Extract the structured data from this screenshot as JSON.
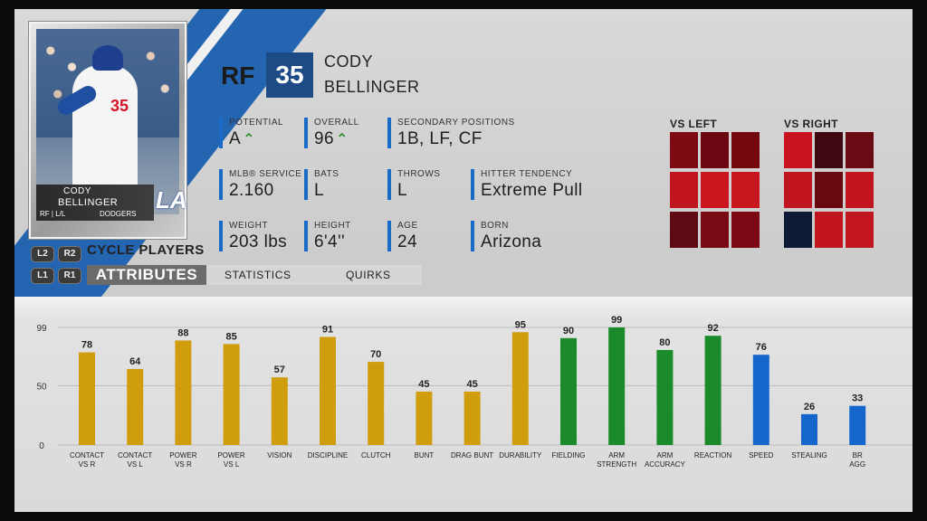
{
  "card": {
    "first_name": "CODY",
    "last_name": "BELLINGER",
    "pos_bats_throws": "RF | L/L",
    "team": "DODGERS",
    "logo": "LA",
    "jersey_number": "35"
  },
  "nav": {
    "l2": "L2",
    "r2": "R2",
    "l1": "L1",
    "r1": "R1",
    "cycle_label": "CYCLE PLAYERS",
    "tabs": [
      {
        "label": "ATTRIBUTES",
        "active": true
      },
      {
        "label": "STATISTICS",
        "active": false
      },
      {
        "label": "QUIRKS",
        "active": false
      }
    ]
  },
  "header": {
    "position": "RF",
    "number": "35",
    "first_name": "CODY",
    "last_name": "BELLINGER"
  },
  "info": {
    "potential": {
      "label": "POTENTIAL",
      "value": "A"
    },
    "overall": {
      "label": "OVERALL",
      "value": "96"
    },
    "secondary": {
      "label": "SECONDARY POSITIONS",
      "value": "1B, LF, CF"
    },
    "service": {
      "label": "MLB® SERVICE",
      "value": "2.160"
    },
    "bats": {
      "label": "BATS",
      "value": "L"
    },
    "throws": {
      "label": "THROWS",
      "value": "L"
    },
    "tendency": {
      "label": "HITTER TENDENCY",
      "value": "Extreme Pull"
    },
    "weight": {
      "label": "WEIGHT",
      "value": "203 lbs"
    },
    "height": {
      "label": "HEIGHT",
      "value": "6'4''"
    },
    "age": {
      "label": "AGE",
      "value": "24"
    },
    "born": {
      "label": "BORN",
      "value": "Arizona"
    }
  },
  "heatmaps": {
    "vs_left": {
      "title": "VS LEFT",
      "cells": [
        "#7e0a14",
        "#6a0710",
        "#74080f",
        "#c0141e",
        "#c9161f",
        "#c8161f",
        "#5e0a12",
        "#7a0a14",
        "#7c0a14"
      ]
    },
    "vs_right": {
      "title": "VS RIGHT",
      "cells": [
        "#c8141e",
        "#3e0810",
        "#6a0a12",
        "#c0141e",
        "#6a0810",
        "#c2141e",
        "#0e1a33",
        "#c0141e",
        "#c2161f"
      ]
    }
  },
  "colors": {
    "hitting": "#cf9d0d",
    "fielding": "#1a8a2a",
    "running": "#1466cc",
    "accent": "#1c4b85"
  },
  "chart_data": {
    "type": "bar",
    "ylim": [
      0,
      99
    ],
    "yticks": [
      0,
      50,
      99
    ],
    "categories": [
      [
        "CONTACT",
        "VS R"
      ],
      [
        "CONTACT",
        "VS L"
      ],
      [
        "POWER",
        "VS R"
      ],
      [
        "POWER",
        "VS L"
      ],
      [
        "VISION"
      ],
      [
        "DISCIPLINE"
      ],
      [
        "CLUTCH"
      ],
      [
        "BUNT"
      ],
      [
        "DRAG BUNT"
      ],
      [
        "DURABILITY"
      ],
      [
        "FIELDING"
      ],
      [
        "ARM",
        "STRENGTH"
      ],
      [
        "ARM",
        "ACCURACY"
      ],
      [
        "REACTION"
      ],
      [
        "SPEED"
      ],
      [
        "STEALING"
      ],
      [
        "BR",
        "AGG"
      ]
    ],
    "values": [
      78,
      64,
      88,
      85,
      57,
      91,
      70,
      45,
      45,
      95,
      90,
      99,
      80,
      92,
      76,
      26,
      33
    ],
    "groups": [
      "hitting",
      "hitting",
      "hitting",
      "hitting",
      "hitting",
      "hitting",
      "hitting",
      "hitting",
      "hitting",
      "hitting",
      "fielding",
      "fielding",
      "fielding",
      "fielding",
      "running",
      "running",
      "running"
    ]
  }
}
